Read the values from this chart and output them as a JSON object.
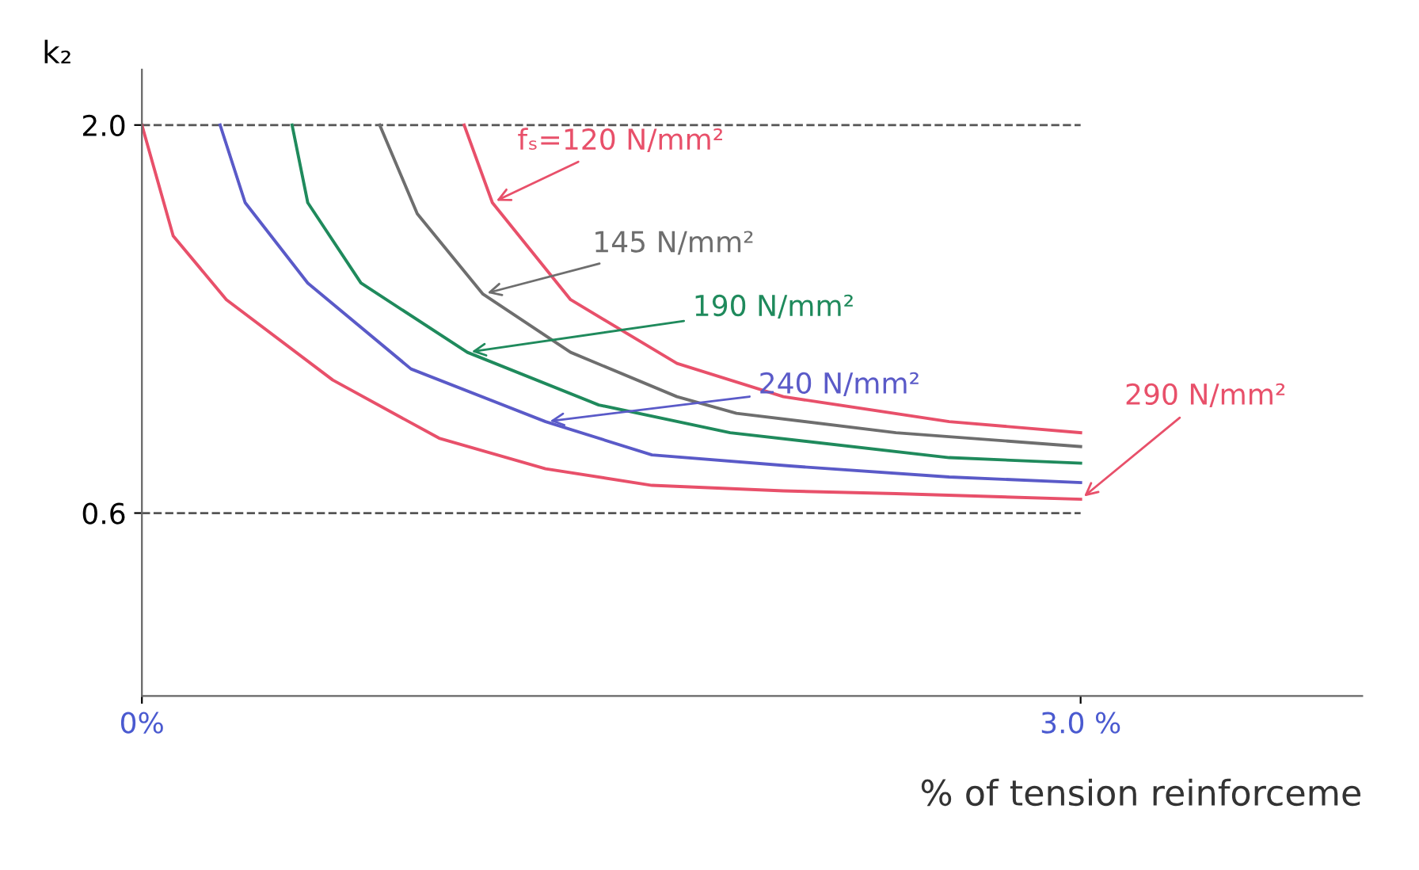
{
  "chart_data": {
    "type": "line",
    "xlabel": "% of tension reinforceme",
    "ylabel": "k₂",
    "xlim": [
      0,
      3.9
    ],
    "ylim": [
      -0.06,
      2.2
    ],
    "xticks": [
      {
        "value": 0,
        "label": "0%"
      },
      {
        "value": 3.0,
        "label": "3.0 %"
      }
    ],
    "yticks": [
      {
        "value": 0.6,
        "label": "0.6"
      },
      {
        "value": 2.0,
        "label": "2.0"
      }
    ],
    "ref_lines": [
      {
        "axis": "y",
        "value": 2.0,
        "label": null,
        "color": "#555555",
        "line_style": "dashed"
      },
      {
        "axis": "y",
        "value": 0.6,
        "label": null,
        "color": "#555555",
        "line_style": "dashed"
      }
    ],
    "grid": false,
    "legend": false,
    "marker": "none",
    "line_style": "solid",
    "series": [
      {
        "name": "fₛ=120 N/mm²",
        "color": "#e8506a",
        "x": [
          1.03,
          1.12,
          1.37,
          1.71,
          2.05,
          2.58,
          3.0
        ],
        "values": [
          2.0,
          1.72,
          1.37,
          1.14,
          1.02,
          0.93,
          0.89
        ]
      },
      {
        "name": "145 N/mm²",
        "color": "#6e6e6e",
        "x": [
          0.76,
          0.88,
          1.09,
          1.37,
          1.71,
          1.9,
          2.41,
          3.0
        ],
        "values": [
          2.0,
          1.68,
          1.39,
          1.18,
          1.02,
          0.96,
          0.89,
          0.84
        ]
      },
      {
        "name": "190 N/mm²",
        "color": "#1f8a5c",
        "x": [
          0.48,
          0.53,
          0.7,
          1.04,
          1.46,
          1.88,
          2.58,
          3.0
        ],
        "values": [
          2.0,
          1.72,
          1.43,
          1.18,
          0.99,
          0.89,
          0.8,
          0.78
        ]
      },
      {
        "name": "240 N/mm²",
        "color": "#5a5ac8",
        "x": [
          0.25,
          0.33,
          0.53,
          0.86,
          1.29,
          1.63,
          2.07,
          2.58,
          3.0
        ],
        "values": [
          2.0,
          1.72,
          1.43,
          1.12,
          0.93,
          0.81,
          0.77,
          0.73,
          0.71
        ]
      },
      {
        "name": "290 N/mm²",
        "color": "#e8506a",
        "x": [
          0,
          0.1,
          0.27,
          0.61,
          0.95,
          1.29,
          1.63,
          2.05,
          2.41,
          3.0
        ],
        "values": [
          2.0,
          1.6,
          1.37,
          1.08,
          0.87,
          0.76,
          0.7,
          0.68,
          0.67,
          0.65
        ]
      }
    ]
  }
}
